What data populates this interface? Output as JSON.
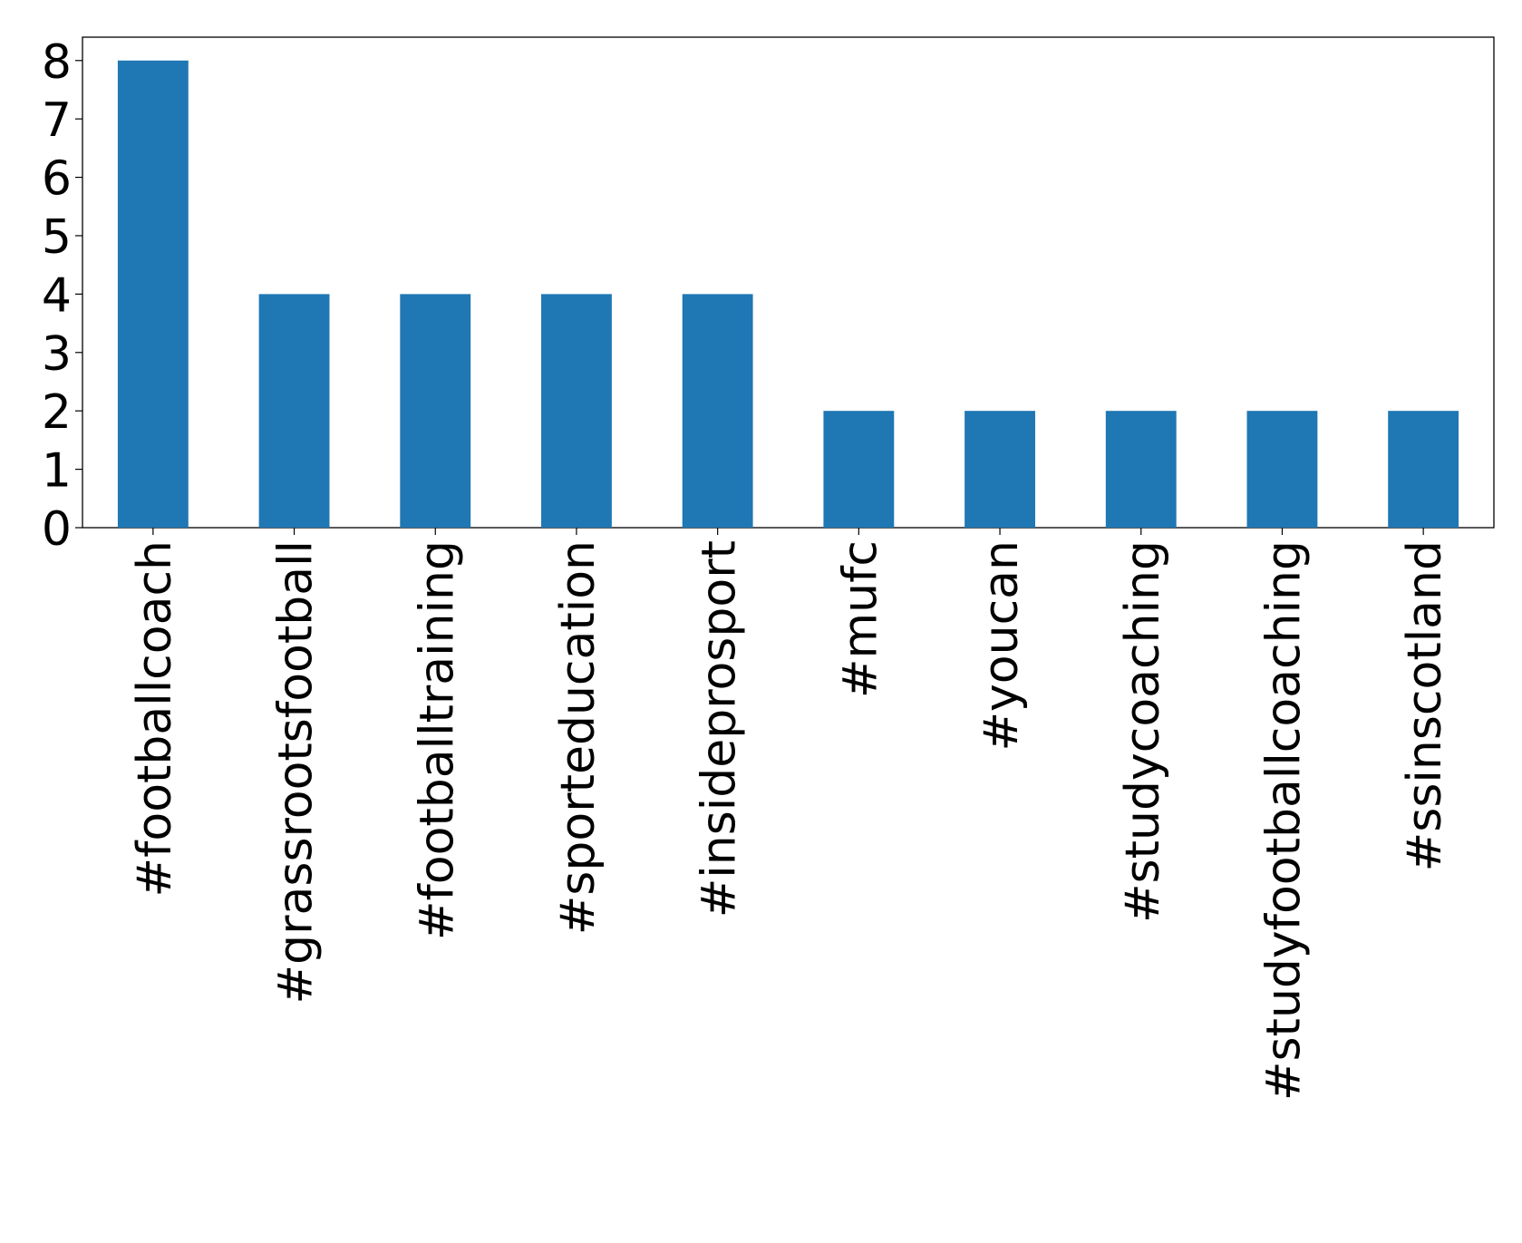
{
  "chart_data": {
    "type": "bar",
    "categories": [
      "#footballcoach",
      "#grassrootsfootball",
      "#footballtraining",
      "#sporteducation",
      "#insideprosport",
      "#mufc",
      "#youcan",
      "#studycoaching",
      "#studyfootballcoaching",
      "#ssinscotland"
    ],
    "values": [
      8,
      4,
      4,
      4,
      4,
      2,
      2,
      2,
      2,
      2
    ],
    "color": "#1f77b4",
    "ylim": [
      0,
      8.4
    ],
    "yticks": [
      0,
      1,
      2,
      3,
      4,
      5,
      6,
      7,
      8
    ],
    "grid": false
  }
}
